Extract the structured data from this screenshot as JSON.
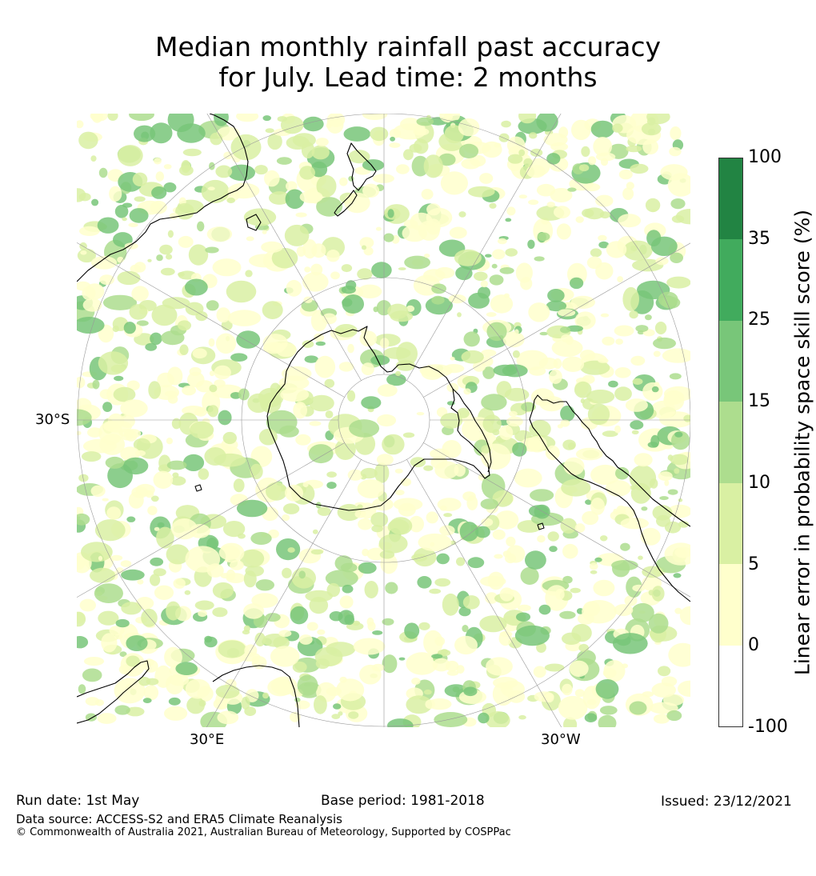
{
  "title": {
    "line1": "Median monthly rainfall past accuracy",
    "line2": "for July. Lead time: 2 months"
  },
  "map": {
    "projection": "south polar stereographic",
    "lat_label": "30°S",
    "lon_labels": [
      "30°E",
      "30°W"
    ],
    "ocean_color": "#ffffff",
    "coast_color": "#000000",
    "grid_color": "#999999"
  },
  "colorbar": {
    "label": "Linear error in probability space skill score (%)",
    "ticks": [
      "100",
      "35",
      "25",
      "15",
      "10",
      "5",
      "0",
      "-100"
    ],
    "bins": [
      {
        "range": "35 to 100",
        "color": "#228443"
      },
      {
        "range": "25 to 35",
        "color": "#41ab5d"
      },
      {
        "range": "15 to 25",
        "color": "#78c679"
      },
      {
        "range": "10 to 15",
        "color": "#addd8e"
      },
      {
        "range": "5 to 10",
        "color": "#d9f0a3"
      },
      {
        "range": "0 to 5",
        "color": "#ffffcc"
      },
      {
        "range": "-100 to 0",
        "color": "#ffffff"
      }
    ]
  },
  "footer": {
    "run_date": "Run date: 1st May",
    "base_period": "Base period: 1981-2018",
    "issued": "Issued: 23/12/2021",
    "data_source": "Data source: ACCESS-S2 and ERA5 Climate Reanalysis",
    "copyright": "© Commonwealth of Australia 2021, Australian Bureau of Meteorology, Supported by COSPPac"
  }
}
